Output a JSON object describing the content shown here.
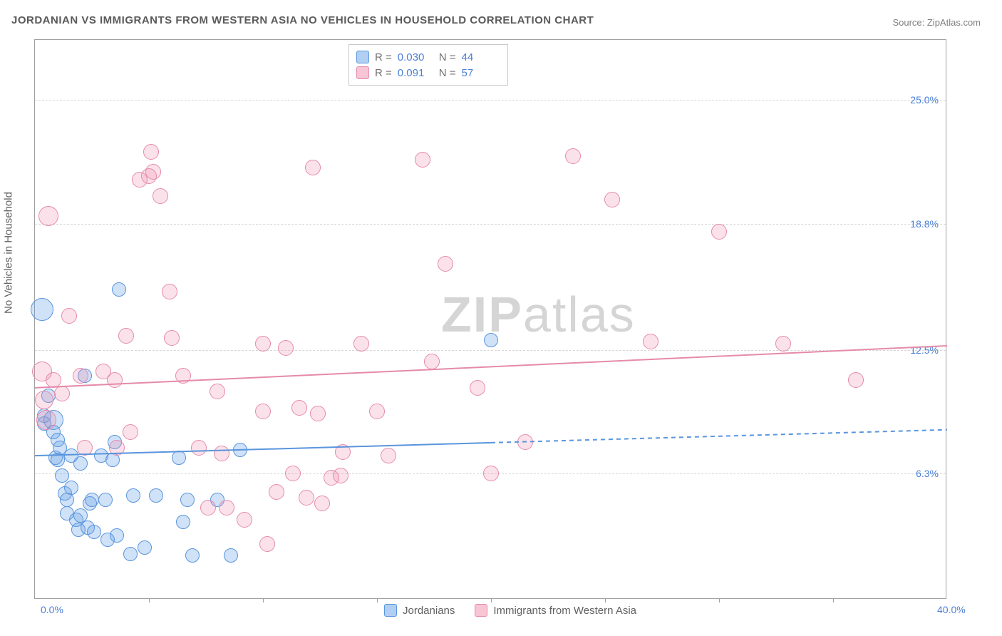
{
  "title": "JORDANIAN VS IMMIGRANTS FROM WESTERN ASIA NO VEHICLES IN HOUSEHOLD CORRELATION CHART",
  "source": "Source: ZipAtlas.com",
  "ylabel": "No Vehicles in Household",
  "watermark_bold": "ZIP",
  "watermark_light": "atlas",
  "chart": {
    "xlim": [
      0,
      40
    ],
    "ylim": [
      0,
      28
    ],
    "x_ticks": [
      {
        "pos": 0.0,
        "label": "0.0%"
      },
      {
        "pos": 40.0,
        "label": "40.0%"
      }
    ],
    "x_minor_ticks_at": [
      5,
      10,
      15,
      20,
      25,
      30,
      35
    ],
    "y_ticks": [
      {
        "pos": 6.3,
        "label": "6.3%"
      },
      {
        "pos": 12.5,
        "label": "12.5%"
      },
      {
        "pos": 18.8,
        "label": "18.8%"
      },
      {
        "pos": 25.0,
        "label": "25.0%"
      }
    ],
    "grid_color": "#d8d8d8",
    "background": "#ffffff",
    "series": [
      {
        "key": "jordanians",
        "label": "Jordanians",
        "color_fill": "rgba(100,160,230,0.30)",
        "color_stroke": "#5a95dd",
        "css_class": "blue",
        "R": "0.030",
        "N": "44",
        "marker_r": 10,
        "trend": {
          "y_at_x0": 7.2,
          "y_at_x40": 8.5,
          "solid_until_x": 20,
          "stroke_width": 2
        },
        "points": [
          {
            "x": 0.3,
            "y": 14.5,
            "r": 16
          },
          {
            "x": 0.4,
            "y": 9.2
          },
          {
            "x": 0.4,
            "y": 8.8
          },
          {
            "x": 0.6,
            "y": 10.2
          },
          {
            "x": 0.8,
            "y": 9.0,
            "r": 14
          },
          {
            "x": 0.8,
            "y": 8.4
          },
          {
            "x": 0.9,
            "y": 7.1
          },
          {
            "x": 1.0,
            "y": 8.0
          },
          {
            "x": 1.0,
            "y": 7.0
          },
          {
            "x": 1.1,
            "y": 7.6
          },
          {
            "x": 1.2,
            "y": 6.2
          },
          {
            "x": 1.3,
            "y": 5.3
          },
          {
            "x": 1.4,
            "y": 5.0
          },
          {
            "x": 1.4,
            "y": 4.3
          },
          {
            "x": 1.6,
            "y": 7.2
          },
          {
            "x": 1.6,
            "y": 5.6
          },
          {
            "x": 1.8,
            "y": 4.0
          },
          {
            "x": 1.9,
            "y": 3.5
          },
          {
            "x": 2.0,
            "y": 6.8
          },
          {
            "x": 2.0,
            "y": 4.2
          },
          {
            "x": 2.2,
            "y": 11.2
          },
          {
            "x": 2.3,
            "y": 3.6
          },
          {
            "x": 2.4,
            "y": 4.8
          },
          {
            "x": 2.5,
            "y": 5.0
          },
          {
            "x": 2.6,
            "y": 3.4
          },
          {
            "x": 2.9,
            "y": 7.2
          },
          {
            "x": 3.1,
            "y": 5.0
          },
          {
            "x": 3.2,
            "y": 3.0
          },
          {
            "x": 3.4,
            "y": 7.0
          },
          {
            "x": 3.5,
            "y": 7.9
          },
          {
            "x": 3.6,
            "y": 3.2
          },
          {
            "x": 3.7,
            "y": 15.5
          },
          {
            "x": 4.2,
            "y": 2.3
          },
          {
            "x": 4.3,
            "y": 5.2
          },
          {
            "x": 4.8,
            "y": 2.6
          },
          {
            "x": 5.3,
            "y": 5.2
          },
          {
            "x": 6.3,
            "y": 7.1
          },
          {
            "x": 6.5,
            "y": 3.9
          },
          {
            "x": 6.7,
            "y": 5.0
          },
          {
            "x": 6.9,
            "y": 2.2
          },
          {
            "x": 8.0,
            "y": 5.0
          },
          {
            "x": 8.6,
            "y": 2.2
          },
          {
            "x": 9.0,
            "y": 7.5
          },
          {
            "x": 20.0,
            "y": 13.0
          }
        ]
      },
      {
        "key": "western_asia",
        "label": "Immigants from Western Asia",
        "label_display": "Immigrants from Western Asia",
        "color_fill": "rgba(240,140,170,0.25)",
        "color_stroke": "#e58aab",
        "css_class": "pink",
        "R": "0.091",
        "N": "57",
        "marker_r": 11,
        "trend": {
          "y_at_x0": 10.6,
          "y_at_x40": 12.7,
          "solid_until_x": 40,
          "stroke_width": 2
        },
        "points": [
          {
            "x": 0.3,
            "y": 11.4,
            "r": 14
          },
          {
            "x": 0.4,
            "y": 10.0,
            "r": 13
          },
          {
            "x": 0.5,
            "y": 9.0,
            "r": 14
          },
          {
            "x": 0.6,
            "y": 19.2,
            "r": 14
          },
          {
            "x": 0.8,
            "y": 11.0
          },
          {
            "x": 1.2,
            "y": 10.3
          },
          {
            "x": 1.5,
            "y": 14.2
          },
          {
            "x": 2.0,
            "y": 11.2
          },
          {
            "x": 2.2,
            "y": 7.6
          },
          {
            "x": 3.0,
            "y": 11.4
          },
          {
            "x": 3.5,
            "y": 11.0
          },
          {
            "x": 3.6,
            "y": 7.6
          },
          {
            "x": 4.0,
            "y": 13.2
          },
          {
            "x": 4.2,
            "y": 8.4
          },
          {
            "x": 4.6,
            "y": 21.0
          },
          {
            "x": 5.0,
            "y": 21.2
          },
          {
            "x": 5.1,
            "y": 22.4
          },
          {
            "x": 5.2,
            "y": 21.4
          },
          {
            "x": 5.5,
            "y": 20.2
          },
          {
            "x": 5.9,
            "y": 15.4
          },
          {
            "x": 6.0,
            "y": 13.1
          },
          {
            "x": 6.5,
            "y": 11.2
          },
          {
            "x": 7.2,
            "y": 7.6
          },
          {
            "x": 7.6,
            "y": 4.6
          },
          {
            "x": 8.0,
            "y": 10.4
          },
          {
            "x": 8.2,
            "y": 7.3
          },
          {
            "x": 8.4,
            "y": 4.6
          },
          {
            "x": 9.2,
            "y": 4.0
          },
          {
            "x": 10.0,
            "y": 12.8
          },
          {
            "x": 10.0,
            "y": 9.4
          },
          {
            "x": 10.2,
            "y": 2.8
          },
          {
            "x": 10.6,
            "y": 5.4
          },
          {
            "x": 11.0,
            "y": 12.6
          },
          {
            "x": 11.3,
            "y": 6.3
          },
          {
            "x": 11.6,
            "y": 9.6
          },
          {
            "x": 11.9,
            "y": 5.1
          },
          {
            "x": 12.2,
            "y": 21.6
          },
          {
            "x": 12.4,
            "y": 9.3
          },
          {
            "x": 12.6,
            "y": 4.8
          },
          {
            "x": 13.0,
            "y": 6.1
          },
          {
            "x": 13.4,
            "y": 6.2
          },
          {
            "x": 13.5,
            "y": 7.4
          },
          {
            "x": 14.3,
            "y": 12.8
          },
          {
            "x": 15.0,
            "y": 9.4
          },
          {
            "x": 15.5,
            "y": 7.2
          },
          {
            "x": 17.0,
            "y": 22.0
          },
          {
            "x": 17.4,
            "y": 11.9
          },
          {
            "x": 18.0,
            "y": 16.8
          },
          {
            "x": 19.4,
            "y": 10.6
          },
          {
            "x": 20.0,
            "y": 6.3
          },
          {
            "x": 21.5,
            "y": 7.9
          },
          {
            "x": 23.6,
            "y": 22.2
          },
          {
            "x": 25.3,
            "y": 20.0
          },
          {
            "x": 27.0,
            "y": 12.9
          },
          {
            "x": 30.0,
            "y": 18.4
          },
          {
            "x": 32.8,
            "y": 12.8
          },
          {
            "x": 36.0,
            "y": 11.0
          }
        ]
      }
    ]
  },
  "legend_stats_labels": {
    "R": "R =",
    "N": "N ="
  },
  "legend_bottom": [
    {
      "css_class": "blue",
      "label": "Jordanians"
    },
    {
      "css_class": "pink",
      "label": "Immigrants from Western Asia"
    }
  ]
}
